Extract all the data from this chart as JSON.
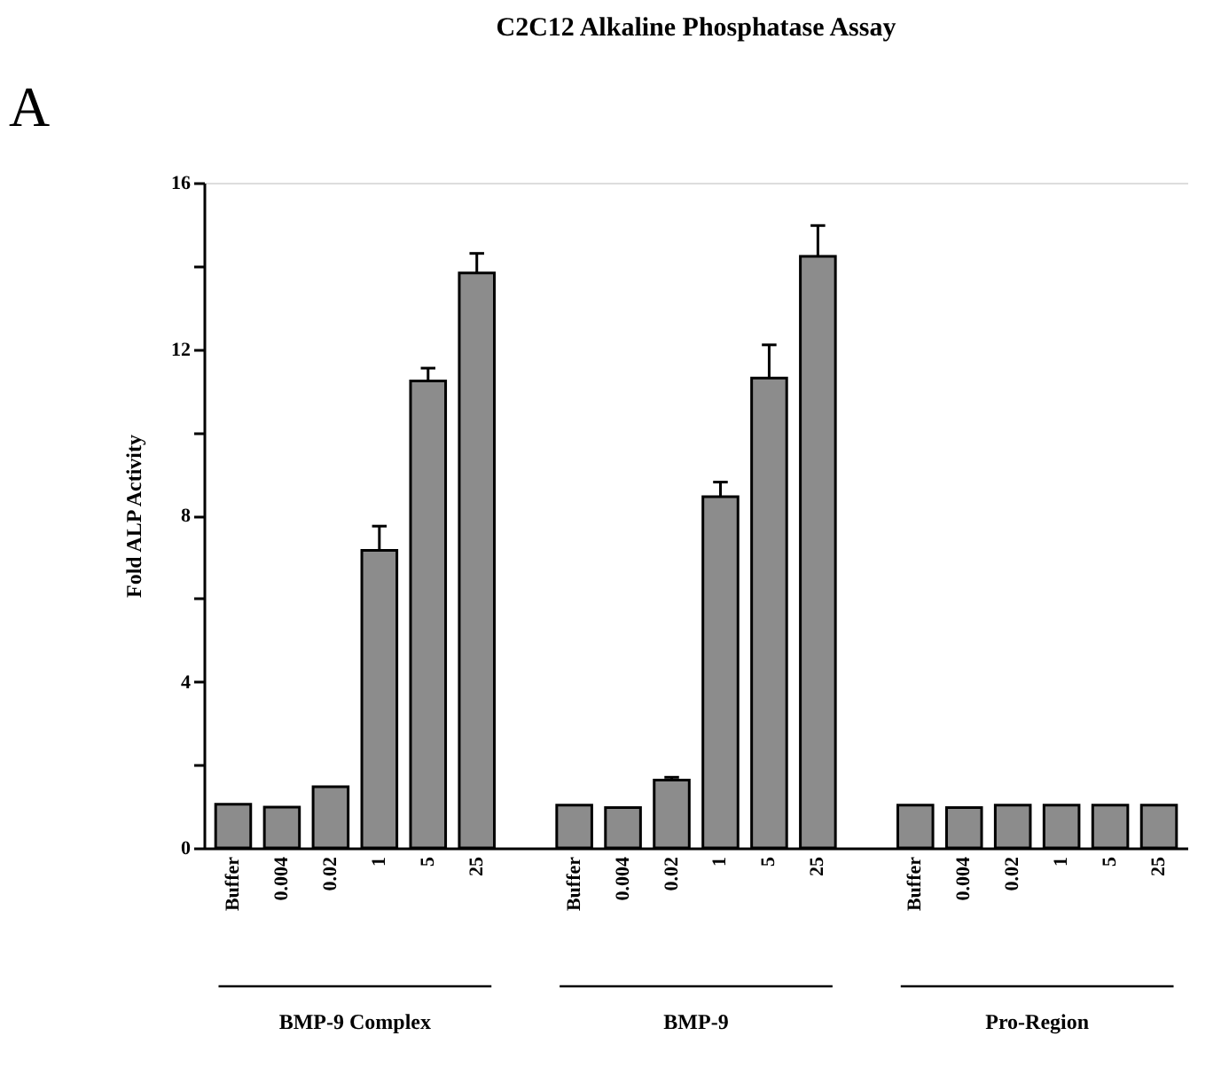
{
  "chart_data": {
    "type": "bar",
    "title": "C2C12 Alkaline Phosphatase Assay",
    "ylabel": "Fold ALP Activity",
    "categories": [
      "Buffer",
      "0.004",
      "0.02",
      "1",
      "5",
      "25",
      null,
      "Buffer",
      "0.004",
      "0.02",
      "1",
      "5",
      "25",
      null,
      "Buffer",
      "0.004",
      "0.02",
      "1",
      "5",
      "25"
    ],
    "values": [
      1.05,
      0.98,
      1.47,
      7.16,
      11.23,
      13.83,
      null,
      1.03,
      0.97,
      1.63,
      8.45,
      11.3,
      14.23,
      null,
      1.03,
      0.97,
      1.03,
      1.03,
      1.03,
      1.03
    ],
    "errors": [
      null,
      null,
      null,
      0.58,
      0.31,
      0.47,
      null,
      null,
      null,
      0.07,
      0.35,
      0.8,
      0.74,
      null,
      null,
      null,
      null,
      null,
      null,
      null
    ],
    "color": "#8c8c8c",
    "ylim": [
      0,
      16
    ],
    "yticks": [
      0,
      {
        "value": 2,
        "label": null
      },
      4,
      {
        "value": 6,
        "label": null
      },
      8,
      {
        "value": 10,
        "label": null
      },
      12,
      {
        "value": 14,
        "label": null
      },
      16
    ],
    "grid": false,
    "annotations": [
      "A",
      "BMP-9 Complex",
      "BMP-9",
      "Pro-Region"
    ]
  }
}
